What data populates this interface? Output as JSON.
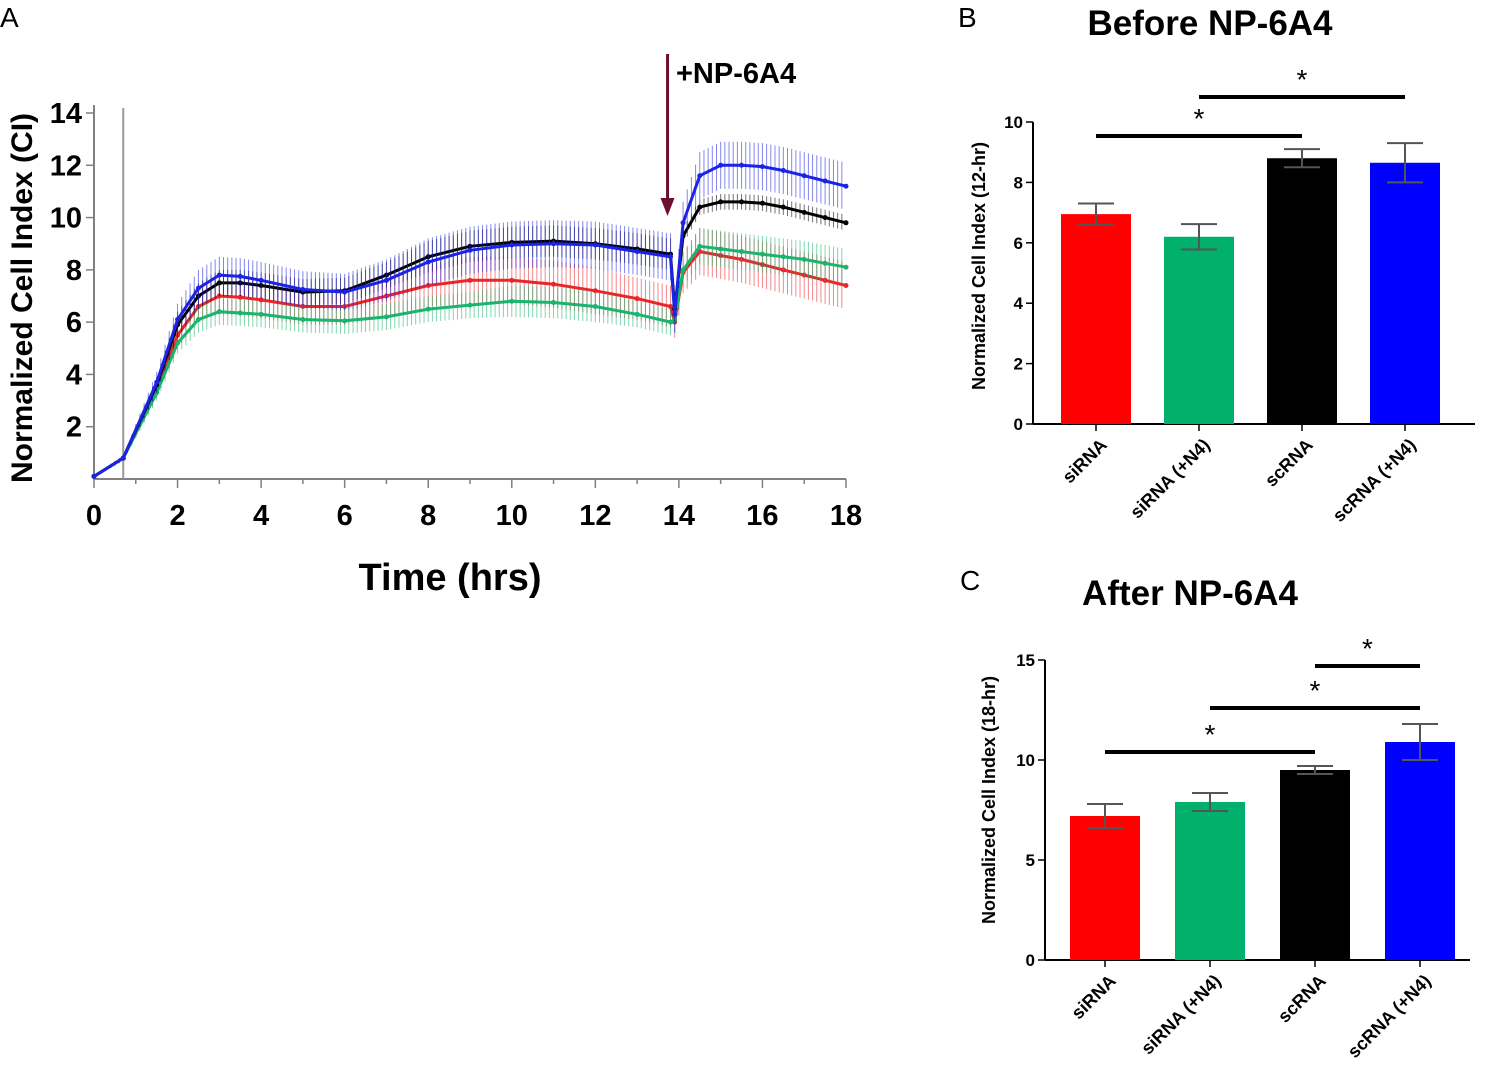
{
  "chart_data": [
    {
      "panel": "A",
      "type": "line",
      "title": "",
      "xlabel": "Time (hrs)",
      "ylabel": "Normalized Cell Index (CI)",
      "xlim": [
        0,
        18
      ],
      "ylim": [
        0,
        14
      ],
      "x_ticks": [
        0,
        2,
        4,
        6,
        8,
        10,
        12,
        14,
        16,
        18
      ],
      "y_ticks": [
        2,
        4,
        6,
        8,
        10,
        12,
        14
      ],
      "annotation": "+NP-6A4",
      "annotation_x": 13.8,
      "baseline_marker_x": 0.7,
      "x": [
        0,
        0.7,
        1.5,
        2,
        2.5,
        3,
        3.5,
        4,
        5,
        6,
        7,
        8,
        9,
        10,
        11,
        12,
        13,
        13.8,
        13.9,
        14.1,
        14.5,
        15,
        15.5,
        16,
        16.5,
        17,
        17.5,
        18
      ],
      "series": [
        {
          "name": "siRNA",
          "color": "#e8262a",
          "values": [
            0.1,
            0.8,
            3.4,
            5.5,
            6.6,
            7.0,
            6.95,
            6.85,
            6.6,
            6.6,
            7.0,
            7.4,
            7.6,
            7.6,
            7.45,
            7.2,
            6.9,
            6.6,
            6.0,
            7.9,
            8.7,
            8.55,
            8.4,
            8.2,
            8.0,
            7.8,
            7.6,
            7.4
          ],
          "err": [
            0.05,
            0.1,
            0.3,
            0.5,
            0.6,
            0.7,
            0.7,
            0.7,
            0.7,
            0.7,
            0.8,
            0.8,
            0.9,
            0.9,
            0.9,
            0.9,
            0.8,
            0.8,
            0.6,
            0.8,
            0.9,
            0.9,
            0.9,
            0.9,
            0.9,
            0.9,
            0.9,
            0.9
          ]
        },
        {
          "name": "siRNA (+N4)",
          "color": "#19b46e",
          "values": [
            0.1,
            0.8,
            3.3,
            5.2,
            6.1,
            6.4,
            6.35,
            6.3,
            6.1,
            6.05,
            6.2,
            6.5,
            6.65,
            6.8,
            6.75,
            6.6,
            6.3,
            6.0,
            6.1,
            8.0,
            8.9,
            8.8,
            8.7,
            8.6,
            8.5,
            8.4,
            8.25,
            8.1
          ],
          "err": [
            0.05,
            0.1,
            0.3,
            0.4,
            0.5,
            0.5,
            0.5,
            0.5,
            0.5,
            0.5,
            0.5,
            0.5,
            0.5,
            0.6,
            0.6,
            0.6,
            0.5,
            0.5,
            0.5,
            0.6,
            0.7,
            0.7,
            0.7,
            0.7,
            0.7,
            0.7,
            0.7,
            0.7
          ]
        },
        {
          "name": "scRNA",
          "color": "#000000",
          "values": [
            0.1,
            0.8,
            3.6,
            5.9,
            7.0,
            7.5,
            7.5,
            7.4,
            7.15,
            7.2,
            7.8,
            8.5,
            8.9,
            9.05,
            9.1,
            9.0,
            8.8,
            8.6,
            6.5,
            9.3,
            10.4,
            10.6,
            10.6,
            10.55,
            10.4,
            10.2,
            10.0,
            9.8
          ],
          "err": [
            0.05,
            0.1,
            0.3,
            0.5,
            0.5,
            0.5,
            0.5,
            0.5,
            0.5,
            0.5,
            0.5,
            0.6,
            0.6,
            0.6,
            0.6,
            0.6,
            0.6,
            0.6,
            0.5,
            0.3,
            0.3,
            0.3,
            0.3,
            0.3,
            0.3,
            0.3,
            0.3,
            0.3
          ]
        },
        {
          "name": "scRNA (+N4)",
          "color": "#1d23e6",
          "values": [
            0.1,
            0.8,
            3.7,
            6.1,
            7.3,
            7.8,
            7.75,
            7.6,
            7.25,
            7.15,
            7.6,
            8.3,
            8.75,
            8.95,
            9.0,
            8.95,
            8.7,
            8.5,
            6.3,
            9.8,
            11.6,
            12.0,
            12.0,
            11.95,
            11.8,
            11.6,
            11.4,
            11.2
          ],
          "err": [
            0.05,
            0.1,
            0.4,
            0.6,
            0.7,
            0.7,
            0.7,
            0.7,
            0.7,
            0.7,
            0.8,
            0.9,
            0.9,
            0.9,
            0.9,
            0.9,
            0.9,
            0.9,
            0.7,
            0.8,
            0.9,
            0.9,
            0.9,
            0.9,
            0.9,
            0.9,
            0.9,
            0.9
          ]
        }
      ]
    },
    {
      "panel": "B",
      "type": "bar",
      "title": "Before NP-6A4",
      "xlabel": "",
      "ylabel": "Normalized Cell Index (12-hr)",
      "ylim": [
        0,
        10
      ],
      "y_ticks": [
        0,
        2,
        4,
        6,
        8,
        10
      ],
      "categories": [
        "siRNA",
        "siRNA (+N4)",
        "scRNA",
        "scRNA (+N4)"
      ],
      "values": [
        6.95,
        6.2,
        8.8,
        8.65
      ],
      "errors": [
        0.35,
        0.42,
        0.3,
        0.65
      ],
      "colors": [
        "#ff0000",
        "#00b06b",
        "#000000",
        "#0000ff"
      ],
      "significance": [
        {
          "from": "siRNA",
          "to": "scRNA",
          "label": "*"
        },
        {
          "from": "siRNA (+N4)",
          "to": "scRNA (+N4)",
          "label": "*"
        }
      ]
    },
    {
      "panel": "C",
      "type": "bar",
      "title": "After NP-6A4",
      "xlabel": "",
      "ylabel": "Normalized Cell Index (18-hr)",
      "ylim": [
        0,
        15
      ],
      "y_ticks": [
        0,
        5,
        10,
        15
      ],
      "categories": [
        "siRNA",
        "siRNA (+N4)",
        "scRNA",
        "scRNA (+N4)"
      ],
      "values": [
        7.2,
        7.9,
        9.5,
        10.9
      ],
      "errors": [
        0.6,
        0.45,
        0.2,
        0.9
      ],
      "colors": [
        "#ff0000",
        "#00b06b",
        "#000000",
        "#0000ff"
      ],
      "significance": [
        {
          "from": "siRNA",
          "to": "scRNA",
          "label": "*"
        },
        {
          "from": "siRNA (+N4)",
          "to": "scRNA (+N4)",
          "label": "*"
        },
        {
          "from": "scRNA",
          "to": "scRNA (+N4)",
          "label": "*"
        }
      ]
    }
  ],
  "panel_labels": {
    "a": "A",
    "b": "B",
    "c": "C"
  },
  "colors": {
    "arrow": "#6b1030",
    "axis": "#808080"
  }
}
